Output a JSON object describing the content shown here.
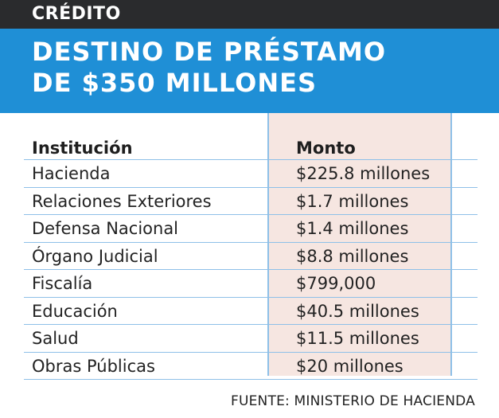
{
  "kicker": "CRÉDITO",
  "title_line1": "DESTINO DE PRÉSTAMO",
  "title_line2": "DE $350 MILLONES",
  "source": "FUENTE: MINISTERIO DE HACIENDA",
  "colors": {
    "header_dark": "#2a2b2d",
    "header_blue": "#1f8fd6",
    "column_highlight": "#f6e6e1",
    "grid_lines": "#8ec0e8"
  },
  "chart_data": {
    "type": "table",
    "columns": [
      "Institución",
      "Monto"
    ],
    "rows": [
      [
        "Hacienda",
        "$225.8 millones"
      ],
      [
        "Relaciones Exteriores",
        "$1.7 millones"
      ],
      [
        "Defensa Nacional",
        "$1.4 millones"
      ],
      [
        "Órgano Judicial",
        "$8.8 millones"
      ],
      [
        "Fiscalía",
        "$799,000"
      ],
      [
        "Educación",
        "$40.5 millones"
      ],
      [
        "Salud",
        "$11.5 millones"
      ],
      [
        "Obras Públicas",
        "$20 millones"
      ]
    ]
  }
}
